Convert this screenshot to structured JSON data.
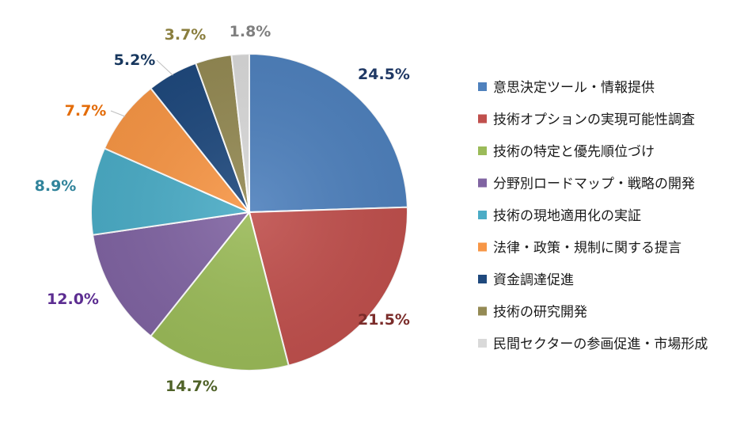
{
  "chart_data": {
    "type": "pie",
    "title": "",
    "legend_position": "right",
    "start": "12 o'clock, clockwise",
    "slices": [
      {
        "label": "意思決定ツール・情報提供",
        "value": 24.5,
        "value_label": "24.5%",
        "color": "#4f81bd",
        "label_color": "#1f3864"
      },
      {
        "label": "技術オプションの実現可能性調査",
        "value": 21.5,
        "value_label": "21.5%",
        "color": "#c0504d",
        "label_color": "#7b2c2a"
      },
      {
        "label": "技術の特定と優先順位づけ",
        "value": 14.7,
        "value_label": "14.7%",
        "color": "#9bbb59",
        "label_color": "#4f6228"
      },
      {
        "label": "分野別ロードマップ・戦略の開発",
        "value": 12.0,
        "value_label": "12.0%",
        "color": "#8064a2",
        "label_color": "#5c2d91"
      },
      {
        "label": "技術の現地適用化の実証",
        "value": 8.9,
        "value_label": "8.9%",
        "color": "#4bacc6",
        "label_color": "#31849b"
      },
      {
        "label": "法律・政策・規制に関する提言",
        "value": 7.7,
        "value_label": "7.7%",
        "color": "#f79646",
        "label_color": "#e36c09"
      },
      {
        "label": "資金調達促進",
        "value": 5.2,
        "value_label": "5.2%",
        "color": "#1f497d",
        "label_color": "#17375e"
      },
      {
        "label": "技術の研究開発",
        "value": 3.7,
        "value_label": "3.7%",
        "color": "#948a54",
        "label_color": "#8a7e3e"
      },
      {
        "label": "民間セクターの参画促進・市場形成",
        "value": 1.8,
        "value_label": "1.8%",
        "color": "#d9d9d9",
        "label_color": "#7f7f7f"
      }
    ]
  }
}
